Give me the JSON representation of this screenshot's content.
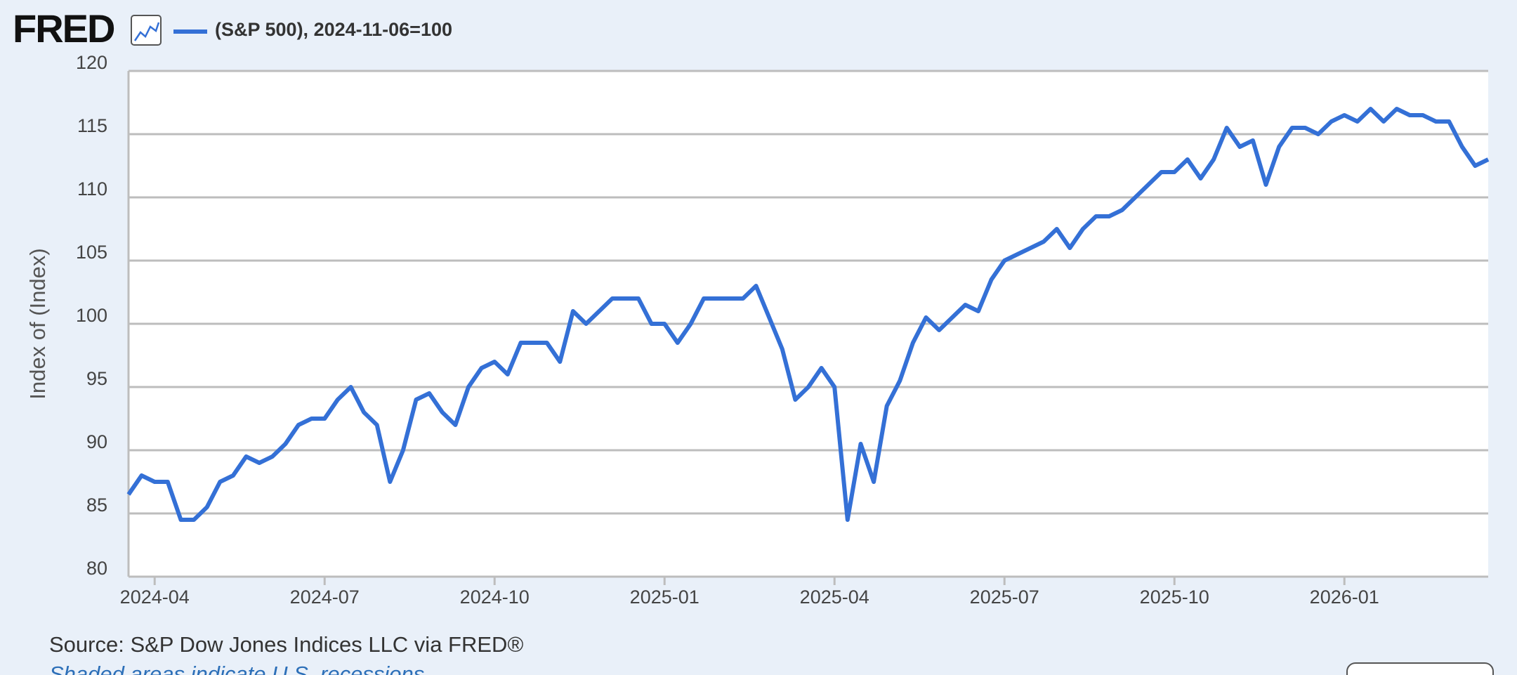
{
  "chart_data": {
    "type": "line",
    "logo": "FRED",
    "ylabel": "Index of (Index)",
    "source": "Source: S&P Dow Jones Indices LLC via FRED®",
    "note": "Shaded areas indicate U.S. recessions",
    "ylim": [
      80,
      120
    ],
    "yticks": [
      80,
      85,
      90,
      95,
      100,
      105,
      110,
      115,
      120
    ],
    "grid": true,
    "categories": [
      null,
      null,
      "2024-04",
      null,
      null,
      null,
      null,
      null,
      null,
      null,
      null,
      null,
      null,
      null,
      null,
      "2024-07",
      null,
      null,
      null,
      null,
      null,
      null,
      null,
      null,
      null,
      null,
      null,
      null,
      "2024-10",
      null,
      null,
      null,
      null,
      null,
      null,
      null,
      null,
      null,
      null,
      null,
      null,
      "2025-01",
      null,
      null,
      null,
      null,
      null,
      null,
      null,
      null,
      null,
      null,
      null,
      null,
      "2025-04",
      null,
      null,
      null,
      null,
      null,
      null,
      null,
      null,
      null,
      null,
      null,
      null,
      "2025-07",
      null,
      null,
      null,
      null,
      null,
      null,
      null,
      null,
      null,
      null,
      null,
      null,
      "2025-10",
      null,
      null,
      null,
      null,
      null,
      null,
      null,
      null,
      null,
      null,
      null,
      null,
      "2026-01",
      null,
      null,
      null,
      null,
      null,
      null,
      null,
      null,
      null,
      null,
      null
    ],
    "series": [
      {
        "name": "(S&P 500), 2024-11-06=100",
        "color": "#3470d6",
        "values": [
          86.5,
          88,
          87.5,
          87.5,
          84.5,
          84.5,
          85.5,
          87.5,
          88,
          89.5,
          89,
          89.5,
          90.5,
          92,
          92.5,
          92.5,
          94,
          95,
          93,
          92,
          87.5,
          90,
          94,
          94.5,
          93,
          92,
          95,
          96.5,
          97,
          96,
          98.5,
          98.5,
          98.5,
          97,
          101,
          100,
          101,
          102,
          102,
          102,
          100,
          100,
          98.5,
          100,
          102,
          102,
          102,
          102,
          103,
          100.5,
          98,
          94,
          95,
          96.5,
          95,
          84.5,
          90.5,
          87.5,
          93.5,
          95.5,
          98.5,
          100.5,
          99.5,
          100.5,
          101.5,
          101,
          103.5,
          105,
          105.5,
          106,
          106.5,
          107.5,
          106,
          107.5,
          108.5,
          108.5,
          109,
          110,
          111,
          112,
          112,
          113,
          111.5,
          113,
          115.5,
          114,
          114.5,
          111,
          114,
          115.5,
          115.5,
          115,
          116,
          116.5,
          116,
          117,
          116,
          117,
          116.5,
          116.5,
          116,
          116,
          114,
          112.5,
          113
        ]
      }
    ]
  }
}
